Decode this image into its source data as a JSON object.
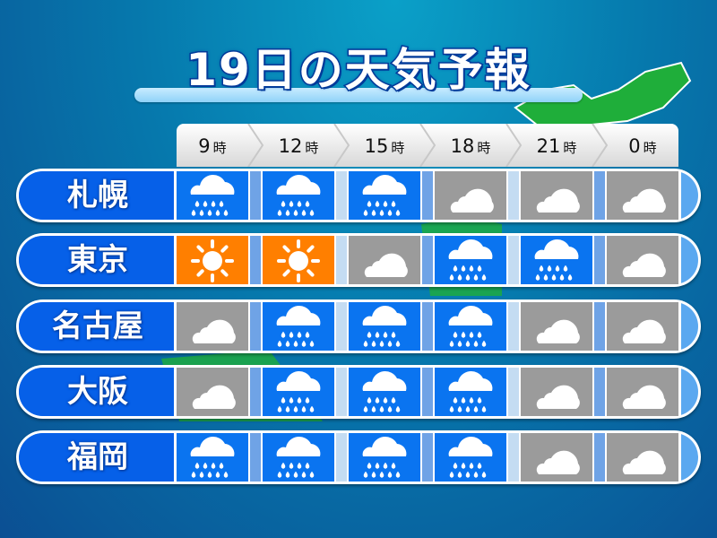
{
  "title": "19日の天気予報",
  "hours": [
    {
      "num": "9",
      "unit": "時"
    },
    {
      "num": "12",
      "unit": "時"
    },
    {
      "num": "15",
      "unit": "時"
    },
    {
      "num": "18",
      "unit": "時"
    },
    {
      "num": "21",
      "unit": "時"
    },
    {
      "num": "0",
      "unit": "時"
    }
  ],
  "colors": {
    "rain": "#0a74f0",
    "sunny": "#ff7f00",
    "cloudy": "#9b9b9b",
    "city_band": "#0660e8"
  },
  "cities": [
    {
      "name": "札幌",
      "forecast": [
        "rain",
        "rain",
        "rain",
        "cloudy",
        "cloudy",
        "cloudy"
      ]
    },
    {
      "name": "東京",
      "forecast": [
        "sunny",
        "sunny",
        "cloudy",
        "rain",
        "rain",
        "cloudy"
      ]
    },
    {
      "name": "名古屋",
      "forecast": [
        "cloudy",
        "rain",
        "rain",
        "rain",
        "cloudy",
        "cloudy"
      ]
    },
    {
      "name": "大阪",
      "forecast": [
        "cloudy",
        "rain",
        "rain",
        "rain",
        "cloudy",
        "cloudy"
      ]
    },
    {
      "name": "福岡",
      "forecast": [
        "rain",
        "rain",
        "rain",
        "rain",
        "cloudy",
        "cloudy"
      ]
    }
  ]
}
